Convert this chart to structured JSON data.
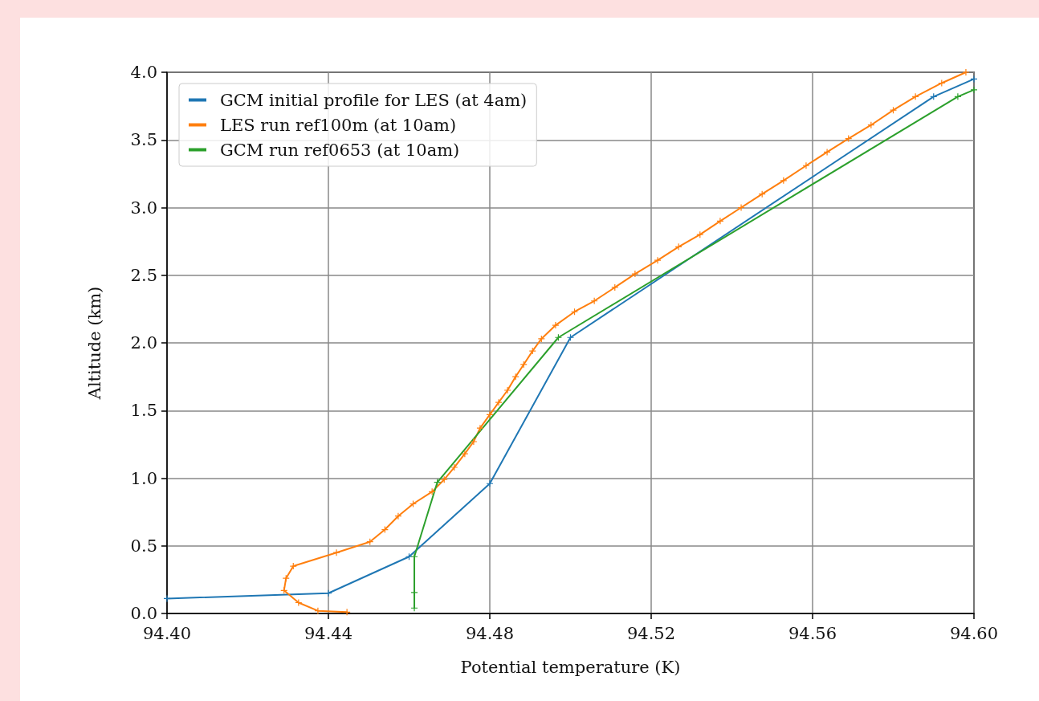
{
  "chart_data": {
    "type": "line",
    "xlabel": "Potential temperature (K)",
    "ylabel": "Altitude (km)",
    "xlim": [
      94.4,
      94.6
    ],
    "ylim": [
      0,
      4
    ],
    "xticks": [
      {
        "value": 94.4,
        "label": "94.40"
      },
      {
        "value": 94.44,
        "label": "94.44"
      },
      {
        "value": 94.48,
        "label": "94.48"
      },
      {
        "value": 94.52,
        "label": "94.52"
      },
      {
        "value": 94.56,
        "label": "94.56"
      },
      {
        "value": 94.6,
        "label": "94.60"
      }
    ],
    "yticks": [
      {
        "value": 0,
        "label": "0.0"
      },
      {
        "value": 0.5,
        "label": "0.5"
      },
      {
        "value": 1,
        "label": "1.0"
      },
      {
        "value": 1.5,
        "label": "1.5"
      },
      {
        "value": 2,
        "label": "2.0"
      },
      {
        "value": 2.5,
        "label": "2.5"
      },
      {
        "value": 3,
        "label": "3.0"
      },
      {
        "value": 3.5,
        "label": "3.5"
      },
      {
        "value": 4,
        "label": "4.0"
      }
    ],
    "grid": true,
    "legend": "top left",
    "marker": "cross",
    "line_style": "solid",
    "series": [
      {
        "name": "GCM initial profile for LES (at 4am)",
        "color": "#1f77b4",
        "x": [
          94.4,
          94.44,
          94.46,
          94.48,
          94.5,
          94.59,
          94.6
        ],
        "values": [
          0.11,
          0.15,
          0.42,
          0.96,
          2.04,
          3.82,
          3.95
        ]
      },
      {
        "name": "LES run ref100m (at 10am)",
        "color": "#ff7f0e",
        "x": [
          94.4446,
          94.4374,
          94.4326,
          94.429,
          94.4295,
          94.4313,
          94.442,
          94.4503,
          94.454,
          94.4573,
          94.461,
          94.4657,
          94.4687,
          94.4712,
          94.4738,
          94.476,
          94.4776,
          94.48,
          94.4822,
          94.4844,
          94.4864,
          94.4884,
          94.4906,
          94.4928,
          94.4963,
          94.501,
          94.5059,
          94.511,
          94.516,
          94.5216,
          94.5268,
          94.5321,
          94.5371,
          94.5423,
          94.5475,
          94.5528,
          94.5584,
          94.5636,
          94.5689,
          94.5745,
          94.58,
          94.5855,
          94.592,
          94.598
        ],
        "values": [
          0.01,
          0.02,
          0.08,
          0.17,
          0.26,
          0.35,
          0.45,
          0.53,
          0.62,
          0.72,
          0.81,
          0.9,
          0.99,
          1.08,
          1.18,
          1.27,
          1.37,
          1.47,
          1.56,
          1.65,
          1.75,
          1.84,
          1.94,
          2.03,
          2.13,
          2.23,
          2.31,
          2.41,
          2.51,
          2.61,
          2.71,
          2.8,
          2.9,
          3.0,
          3.1,
          3.2,
          3.31,
          3.41,
          3.51,
          3.61,
          3.72,
          3.82,
          3.92,
          4.0
        ]
      },
      {
        "name": "GCM run ref0653 (at 10am)",
        "color": "#2ca02c",
        "x": [
          94.4613,
          94.4613,
          94.4613,
          94.467,
          94.497,
          94.596,
          94.6
        ],
        "values": [
          0.04,
          0.155,
          0.42,
          0.97,
          2.04,
          3.82,
          3.87
        ]
      }
    ]
  }
}
